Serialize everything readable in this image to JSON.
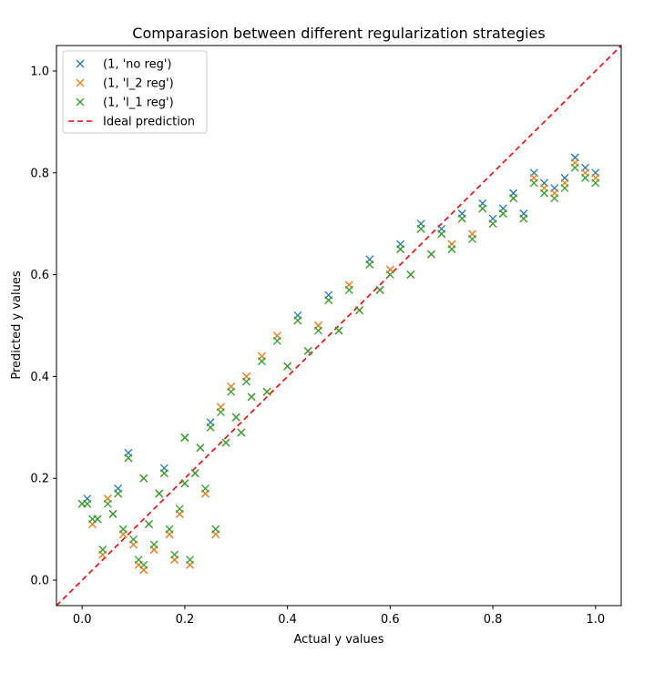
{
  "chart_data": {
    "type": "scatter",
    "title": "Comparasion between different regularization strategies",
    "xlabel": "Actual y values",
    "ylabel": "Predicted y values",
    "xlim": [
      -0.05,
      1.05
    ],
    "ylim": [
      -0.05,
      1.05
    ],
    "xticks": [
      "0.0",
      "0.2",
      "0.4",
      "0.6",
      "0.8",
      "1.0"
    ],
    "yticks": [
      "0.0",
      "0.2",
      "0.4",
      "0.6",
      "0.8",
      "1.0"
    ],
    "grid": false,
    "legend_position": "top-left",
    "marker": "x",
    "series": [
      {
        "name": "(1, 'no reg')",
        "color": "#1f77b4",
        "points": [
          [
            0.0,
            0.15
          ],
          [
            0.01,
            0.16
          ],
          [
            0.02,
            0.11
          ],
          [
            0.03,
            0.12
          ],
          [
            0.04,
            0.05
          ],
          [
            0.05,
            0.16
          ],
          [
            0.06,
            0.13
          ],
          [
            0.07,
            0.18
          ],
          [
            0.08,
            0.09
          ],
          [
            0.09,
            0.25
          ],
          [
            0.1,
            0.07
          ],
          [
            0.11,
            0.03
          ],
          [
            0.12,
            0.02
          ],
          [
            0.12,
            0.2
          ],
          [
            0.13,
            0.11
          ],
          [
            0.14,
            0.06
          ],
          [
            0.15,
            0.17
          ],
          [
            0.16,
            0.22
          ],
          [
            0.17,
            0.09
          ],
          [
            0.18,
            0.04
          ],
          [
            0.19,
            0.13
          ],
          [
            0.2,
            0.19
          ],
          [
            0.2,
            0.28
          ],
          [
            0.21,
            0.03
          ],
          [
            0.22,
            0.21
          ],
          [
            0.23,
            0.26
          ],
          [
            0.24,
            0.17
          ],
          [
            0.25,
            0.31
          ],
          [
            0.26,
            0.09
          ],
          [
            0.27,
            0.34
          ],
          [
            0.28,
            0.27
          ],
          [
            0.29,
            0.38
          ],
          [
            0.3,
            0.32
          ],
          [
            0.31,
            0.29
          ],
          [
            0.32,
            0.4
          ],
          [
            0.33,
            0.36
          ],
          [
            0.35,
            0.44
          ],
          [
            0.36,
            0.37
          ],
          [
            0.38,
            0.48
          ],
          [
            0.4,
            0.42
          ],
          [
            0.42,
            0.52
          ],
          [
            0.44,
            0.45
          ],
          [
            0.46,
            0.5
          ],
          [
            0.48,
            0.56
          ],
          [
            0.5,
            0.49
          ],
          [
            0.52,
            0.58
          ],
          [
            0.54,
            0.53
          ],
          [
            0.56,
            0.63
          ],
          [
            0.58,
            0.57
          ],
          [
            0.6,
            0.61
          ],
          [
            0.62,
            0.66
          ],
          [
            0.64,
            0.6
          ],
          [
            0.66,
            0.7
          ],
          [
            0.68,
            0.64
          ],
          [
            0.7,
            0.69
          ],
          [
            0.72,
            0.66
          ],
          [
            0.74,
            0.72
          ],
          [
            0.76,
            0.68
          ],
          [
            0.78,
            0.74
          ],
          [
            0.8,
            0.71
          ],
          [
            0.82,
            0.73
          ],
          [
            0.84,
            0.76
          ],
          [
            0.86,
            0.72
          ],
          [
            0.88,
            0.8
          ],
          [
            0.9,
            0.78
          ],
          [
            0.92,
            0.77
          ],
          [
            0.94,
            0.79
          ],
          [
            0.96,
            0.83
          ],
          [
            0.98,
            0.81
          ],
          [
            1.0,
            0.8
          ]
        ]
      },
      {
        "name": "(1, 'l_2 reg')",
        "color": "#ff7f0e",
        "points": [
          [
            0.0,
            0.15
          ],
          [
            0.01,
            0.15
          ],
          [
            0.02,
            0.11
          ],
          [
            0.03,
            0.12
          ],
          [
            0.04,
            0.05
          ],
          [
            0.05,
            0.16
          ],
          [
            0.06,
            0.13
          ],
          [
            0.07,
            0.17
          ],
          [
            0.08,
            0.09
          ],
          [
            0.09,
            0.24
          ],
          [
            0.1,
            0.07
          ],
          [
            0.11,
            0.03
          ],
          [
            0.12,
            0.02
          ],
          [
            0.12,
            0.2
          ],
          [
            0.13,
            0.11
          ],
          [
            0.14,
            0.06
          ],
          [
            0.15,
            0.17
          ],
          [
            0.16,
            0.21
          ],
          [
            0.17,
            0.09
          ],
          [
            0.18,
            0.04
          ],
          [
            0.19,
            0.13
          ],
          [
            0.2,
            0.19
          ],
          [
            0.2,
            0.28
          ],
          [
            0.21,
            0.03
          ],
          [
            0.22,
            0.21
          ],
          [
            0.23,
            0.26
          ],
          [
            0.24,
            0.17
          ],
          [
            0.25,
            0.3
          ],
          [
            0.26,
            0.09
          ],
          [
            0.27,
            0.34
          ],
          [
            0.28,
            0.27
          ],
          [
            0.29,
            0.38
          ],
          [
            0.3,
            0.32
          ],
          [
            0.31,
            0.29
          ],
          [
            0.32,
            0.4
          ],
          [
            0.33,
            0.36
          ],
          [
            0.35,
            0.44
          ],
          [
            0.36,
            0.37
          ],
          [
            0.38,
            0.48
          ],
          [
            0.4,
            0.42
          ],
          [
            0.42,
            0.51
          ],
          [
            0.44,
            0.45
          ],
          [
            0.46,
            0.5
          ],
          [
            0.48,
            0.55
          ],
          [
            0.5,
            0.49
          ],
          [
            0.52,
            0.58
          ],
          [
            0.54,
            0.53
          ],
          [
            0.56,
            0.62
          ],
          [
            0.58,
            0.57
          ],
          [
            0.6,
            0.61
          ],
          [
            0.62,
            0.65
          ],
          [
            0.64,
            0.6
          ],
          [
            0.66,
            0.69
          ],
          [
            0.68,
            0.64
          ],
          [
            0.7,
            0.68
          ],
          [
            0.72,
            0.66
          ],
          [
            0.74,
            0.71
          ],
          [
            0.76,
            0.68
          ],
          [
            0.78,
            0.73
          ],
          [
            0.8,
            0.7
          ],
          [
            0.82,
            0.72
          ],
          [
            0.84,
            0.75
          ],
          [
            0.86,
            0.71
          ],
          [
            0.88,
            0.79
          ],
          [
            0.9,
            0.77
          ],
          [
            0.92,
            0.76
          ],
          [
            0.94,
            0.78
          ],
          [
            0.96,
            0.82
          ],
          [
            0.98,
            0.8
          ],
          [
            1.0,
            0.79
          ]
        ]
      },
      {
        "name": "(1, 'l_1 reg')",
        "color": "#2ca02c",
        "points": [
          [
            0.0,
            0.15
          ],
          [
            0.01,
            0.15
          ],
          [
            0.02,
            0.12
          ],
          [
            0.03,
            0.12
          ],
          [
            0.04,
            0.06
          ],
          [
            0.05,
            0.15
          ],
          [
            0.06,
            0.13
          ],
          [
            0.07,
            0.17
          ],
          [
            0.08,
            0.1
          ],
          [
            0.09,
            0.24
          ],
          [
            0.1,
            0.08
          ],
          [
            0.11,
            0.04
          ],
          [
            0.12,
            0.03
          ],
          [
            0.12,
            0.2
          ],
          [
            0.13,
            0.11
          ],
          [
            0.14,
            0.07
          ],
          [
            0.15,
            0.17
          ],
          [
            0.16,
            0.21
          ],
          [
            0.17,
            0.1
          ],
          [
            0.18,
            0.05
          ],
          [
            0.19,
            0.14
          ],
          [
            0.2,
            0.19
          ],
          [
            0.2,
            0.28
          ],
          [
            0.21,
            0.04
          ],
          [
            0.22,
            0.21
          ],
          [
            0.23,
            0.26
          ],
          [
            0.24,
            0.18
          ],
          [
            0.25,
            0.3
          ],
          [
            0.26,
            0.1
          ],
          [
            0.27,
            0.33
          ],
          [
            0.28,
            0.27
          ],
          [
            0.29,
            0.37
          ],
          [
            0.3,
            0.32
          ],
          [
            0.31,
            0.29
          ],
          [
            0.32,
            0.39
          ],
          [
            0.33,
            0.36
          ],
          [
            0.35,
            0.43
          ],
          [
            0.36,
            0.37
          ],
          [
            0.38,
            0.47
          ],
          [
            0.4,
            0.42
          ],
          [
            0.42,
            0.51
          ],
          [
            0.44,
            0.45
          ],
          [
            0.46,
            0.49
          ],
          [
            0.48,
            0.55
          ],
          [
            0.5,
            0.49
          ],
          [
            0.52,
            0.57
          ],
          [
            0.54,
            0.53
          ],
          [
            0.56,
            0.62
          ],
          [
            0.58,
            0.57
          ],
          [
            0.6,
            0.6
          ],
          [
            0.62,
            0.65
          ],
          [
            0.64,
            0.6
          ],
          [
            0.66,
            0.69
          ],
          [
            0.68,
            0.64
          ],
          [
            0.7,
            0.68
          ],
          [
            0.72,
            0.65
          ],
          [
            0.74,
            0.71
          ],
          [
            0.76,
            0.67
          ],
          [
            0.78,
            0.73
          ],
          [
            0.8,
            0.7
          ],
          [
            0.82,
            0.72
          ],
          [
            0.84,
            0.75
          ],
          [
            0.86,
            0.71
          ],
          [
            0.88,
            0.78
          ],
          [
            0.9,
            0.76
          ],
          [
            0.92,
            0.75
          ],
          [
            0.94,
            0.77
          ],
          [
            0.96,
            0.81
          ],
          [
            0.98,
            0.79
          ],
          [
            1.0,
            0.78
          ]
        ]
      }
    ],
    "reference_line": {
      "name": "Ideal prediction",
      "color": "#ff0000",
      "style": "dashed",
      "points": [
        [
          -0.05,
          -0.05
        ],
        [
          1.05,
          1.05
        ]
      ]
    }
  }
}
